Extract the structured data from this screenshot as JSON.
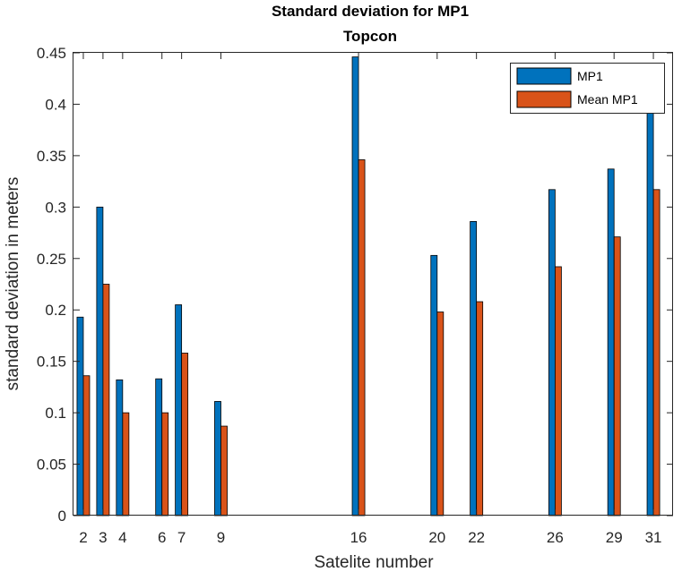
{
  "chart_data": {
    "type": "bar",
    "title": "Standard deviation for MP1",
    "subtitle": "Topcon",
    "xlabel": "Satelite number",
    "ylabel": "standard deviation in meters",
    "xlim": [
      1.5,
      32.0
    ],
    "ylim": [
      0,
      0.45
    ],
    "x": [
      2,
      3,
      4,
      6,
      7,
      9,
      16,
      20,
      22,
      26,
      29,
      31
    ],
    "xtick_labels": [
      "2",
      "3",
      "4",
      "6",
      "7",
      "9",
      "16",
      "20",
      "22",
      "26",
      "29",
      "31"
    ],
    "yticks": [
      0,
      0.05,
      0.1,
      0.15,
      0.2,
      0.25,
      0.3,
      0.35,
      0.4,
      0.45
    ],
    "ytick_labels": [
      "0",
      "0.05",
      "0.1",
      "0.15",
      "0.2",
      "0.25",
      "0.3",
      "0.35",
      "0.4",
      "0.45"
    ],
    "series": [
      {
        "name": "MP1",
        "color": "#0072BD",
        "values": [
          0.193,
          0.3,
          0.132,
          0.133,
          0.205,
          0.111,
          0.446,
          0.253,
          0.286,
          0.317,
          0.337,
          0.408
        ]
      },
      {
        "name": "Mean MP1",
        "color": "#D95319",
        "values": [
          0.136,
          0.225,
          0.1,
          0.1,
          0.158,
          0.087,
          0.346,
          0.198,
          0.208,
          0.242,
          0.271,
          0.317
        ]
      }
    ],
    "grid": false,
    "legend": "top-right"
  }
}
